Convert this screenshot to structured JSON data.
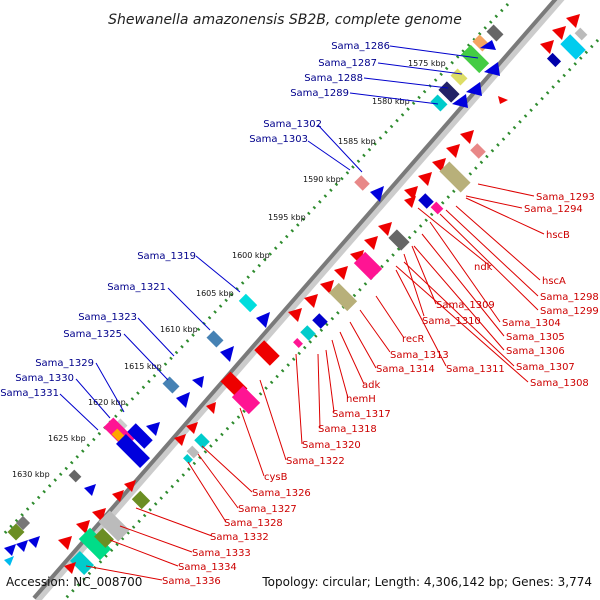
{
  "title": "Shewanella amazonensis SB2B, complete genome",
  "footer": {
    "accession": "Accession: NC_008700",
    "summary": "Topology: circular; Length: 4,306,142 bp; Genes: 3,774"
  },
  "colors": {
    "backbone": "#888888",
    "tick": "#2e8b2e",
    "forward_label": "#00008b",
    "reverse_label": "#cc0000"
  },
  "kbp_ticks": [
    "1575 kbp",
    "1580 kbp",
    "1585 kbp",
    "1590 kbp",
    "1595 kbp",
    "1600 kbp",
    "1605 kbp",
    "1610 kbp",
    "1615 kbp",
    "1620 kbp",
    "1625 kbp",
    "1630 kbp"
  ],
  "forward_labels": [
    "Sama_1286",
    "Sama_1287",
    "Sama_1288",
    "Sama_1289",
    "Sama_1302",
    "Sama_1303",
    "Sama_1319",
    "Sama_1321",
    "Sama_1323",
    "Sama_1325",
    "Sama_1329",
    "Sama_1330",
    "Sama_1331"
  ],
  "reverse_labels": [
    "Sama_1293",
    "Sama_1294",
    "hscB",
    "ndk",
    "hscA",
    "Sama_1298",
    "Sama_1299",
    "Sama_1309",
    "Sama_1304",
    "Sama_1310",
    "Sama_1305",
    "recR",
    "Sama_1306",
    "Sama_1313",
    "Sama_1311",
    "Sama_1307",
    "Sama_1314",
    "Sama_1308",
    "adk",
    "hemH",
    "Sama_1317",
    "Sama_1318",
    "Sama_1320",
    "Sama_1322",
    "cysB",
    "Sama_1326",
    "Sama_1327",
    "Sama_1328",
    "Sama_1332",
    "Sama_1333",
    "Sama_1334",
    "Sama_1336"
  ]
}
